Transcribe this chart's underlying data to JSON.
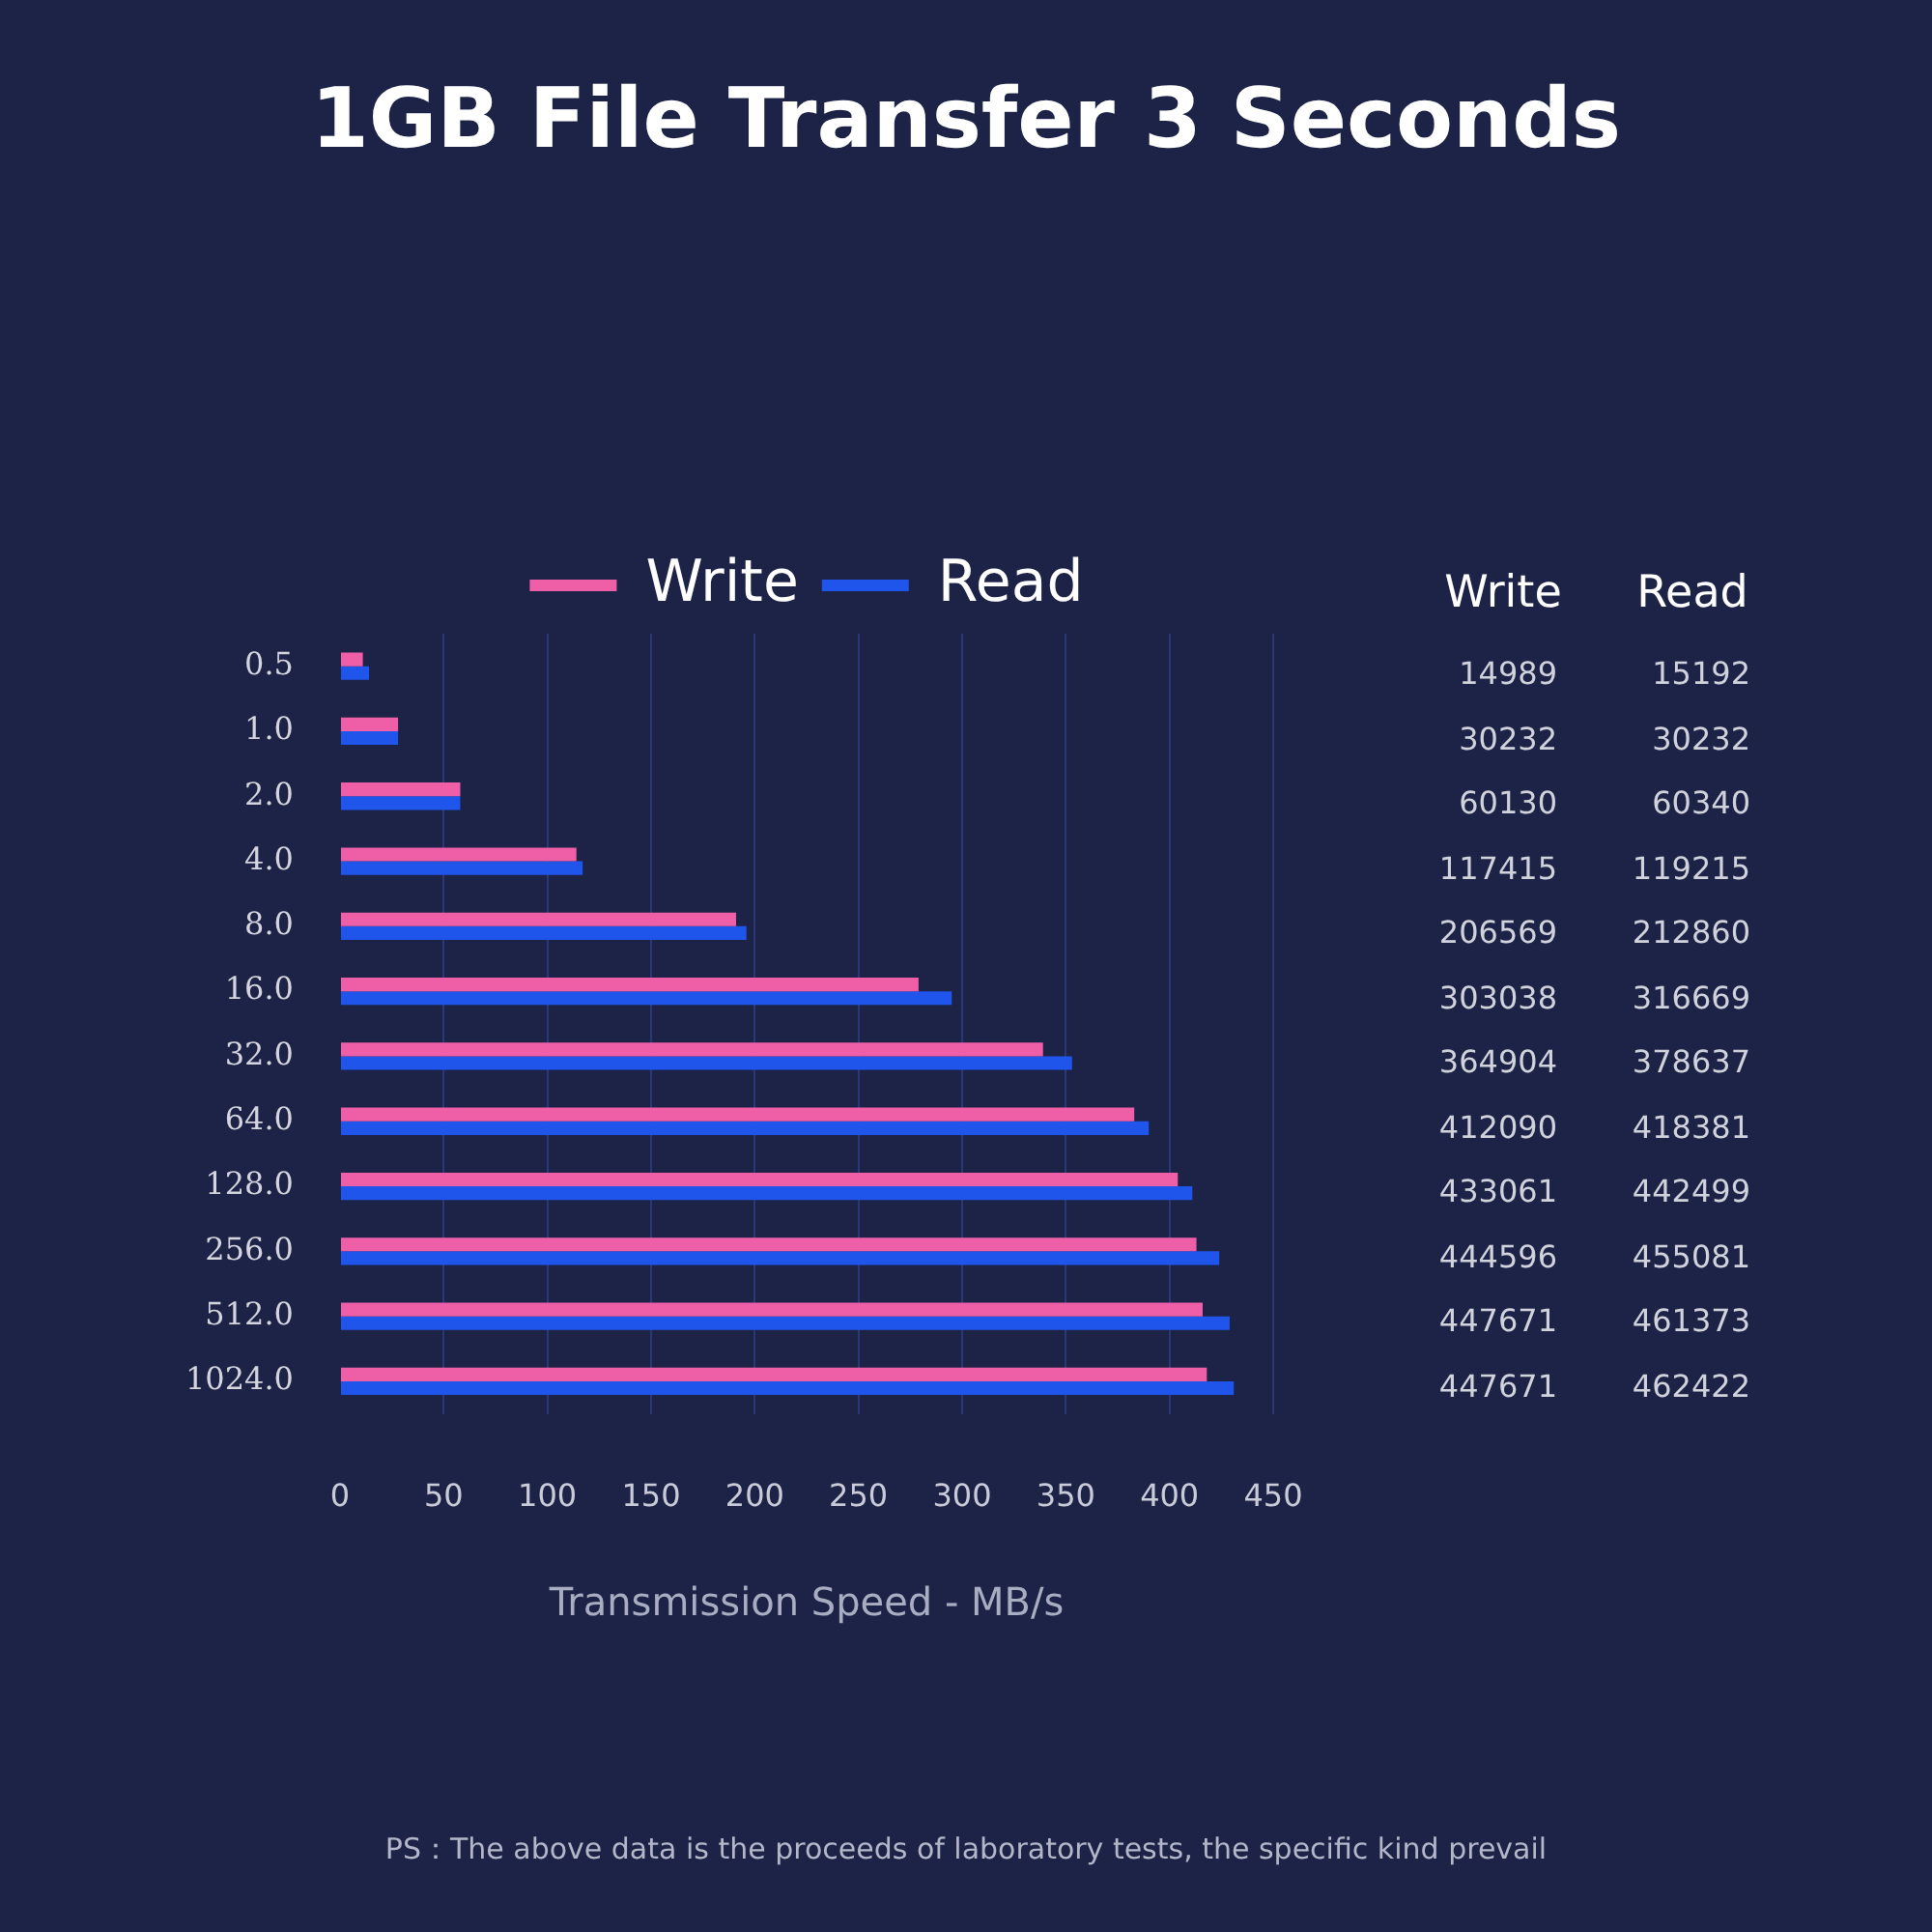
{
  "chart_data": [
    {
      "type": "bar",
      "orientation": "horizontal",
      "title": "1GB File Transfer 3 Seconds",
      "xlabel": "Transmission Speed - MB/s",
      "categories": [
        "0.5",
        "1.0",
        "2.0",
        "4.0",
        "8.0",
        "16.0",
        "32.0",
        "64.0",
        "128.0",
        "256.0",
        "512.0",
        "1024.0"
      ],
      "series": [
        {
          "name": "Write",
          "color": "#ef5fa8",
          "values": [
            11,
            28,
            58,
            114,
            191,
            279,
            339,
            383,
            404,
            413,
            416,
            418
          ]
        },
        {
          "name": "Read",
          "color": "#1f55ea",
          "values": [
            14,
            28,
            58,
            117,
            196,
            295,
            353,
            390,
            411,
            424,
            429,
            431
          ]
        }
      ],
      "xlim": [
        0,
        450
      ],
      "xticks": [
        0,
        50,
        100,
        150,
        200,
        250,
        300,
        350,
        400,
        450
      ],
      "grid": "x",
      "legend": "top",
      "annotations": [
        "PS：The above data is the proceeds of laboratory tests, the specific kind prevail"
      ]
    },
    {
      "type": "other",
      "annotations": [
        "Write",
        "Read",
        "14989",
        "15192",
        "30232",
        "30232",
        "60130",
        "60340",
        "117415",
        "119215",
        "206569",
        "212860",
        "303038",
        "316669",
        "364904",
        "378637",
        "412090",
        "418381",
        "433061",
        "442499",
        "444596",
        "455081",
        "447671",
        "461373",
        "447671",
        "462422"
      ]
    }
  ]
}
